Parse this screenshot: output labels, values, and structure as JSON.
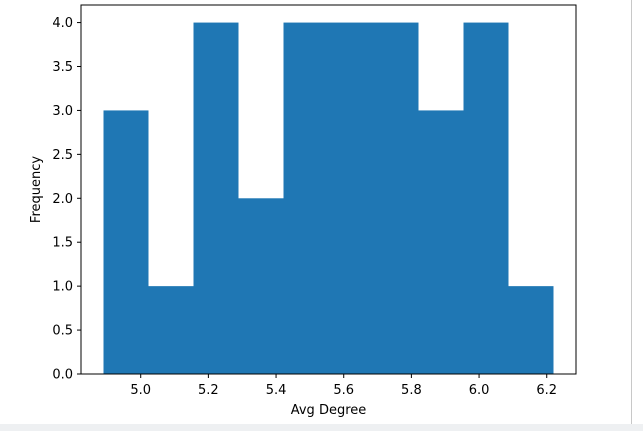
{
  "chart_data": {
    "type": "bar",
    "subtype": "histogram",
    "bins": [
      {
        "start": 4.89,
        "end": 5.023,
        "count": 3
      },
      {
        "start": 5.023,
        "end": 5.156,
        "count": 1
      },
      {
        "start": 5.156,
        "end": 5.289,
        "count": 4
      },
      {
        "start": 5.289,
        "end": 5.422,
        "count": 2
      },
      {
        "start": 5.422,
        "end": 5.555,
        "count": 4
      },
      {
        "start": 5.555,
        "end": 5.688,
        "count": 4
      },
      {
        "start": 5.688,
        "end": 5.821,
        "count": 4
      },
      {
        "start": 5.821,
        "end": 5.954,
        "count": 3
      },
      {
        "start": 5.954,
        "end": 6.087,
        "count": 4
      },
      {
        "start": 6.087,
        "end": 6.22,
        "count": 1
      }
    ],
    "title": "",
    "xlabel": "Avg Degree",
    "ylabel": "Frequency",
    "xlim": [
      4.8235,
      6.2865
    ],
    "ylim": [
      0,
      4.2
    ],
    "xticks": [
      5.0,
      5.2,
      5.4,
      5.6,
      5.8,
      6.0,
      6.2
    ],
    "xtick_labels": [
      "5.0",
      "5.2",
      "5.4",
      "5.6",
      "5.8",
      "6.0",
      "6.2"
    ],
    "yticks": [
      0,
      0.5,
      1.0,
      1.5,
      2.0,
      2.5,
      3.0,
      3.5,
      4.0
    ],
    "ytick_labels": [
      "0.0",
      "0.5",
      "1.0",
      "1.5",
      "2.0",
      "2.5",
      "3.0",
      "3.5",
      "4.0"
    ],
    "grid": false,
    "bar_color": "#1f77b4"
  }
}
